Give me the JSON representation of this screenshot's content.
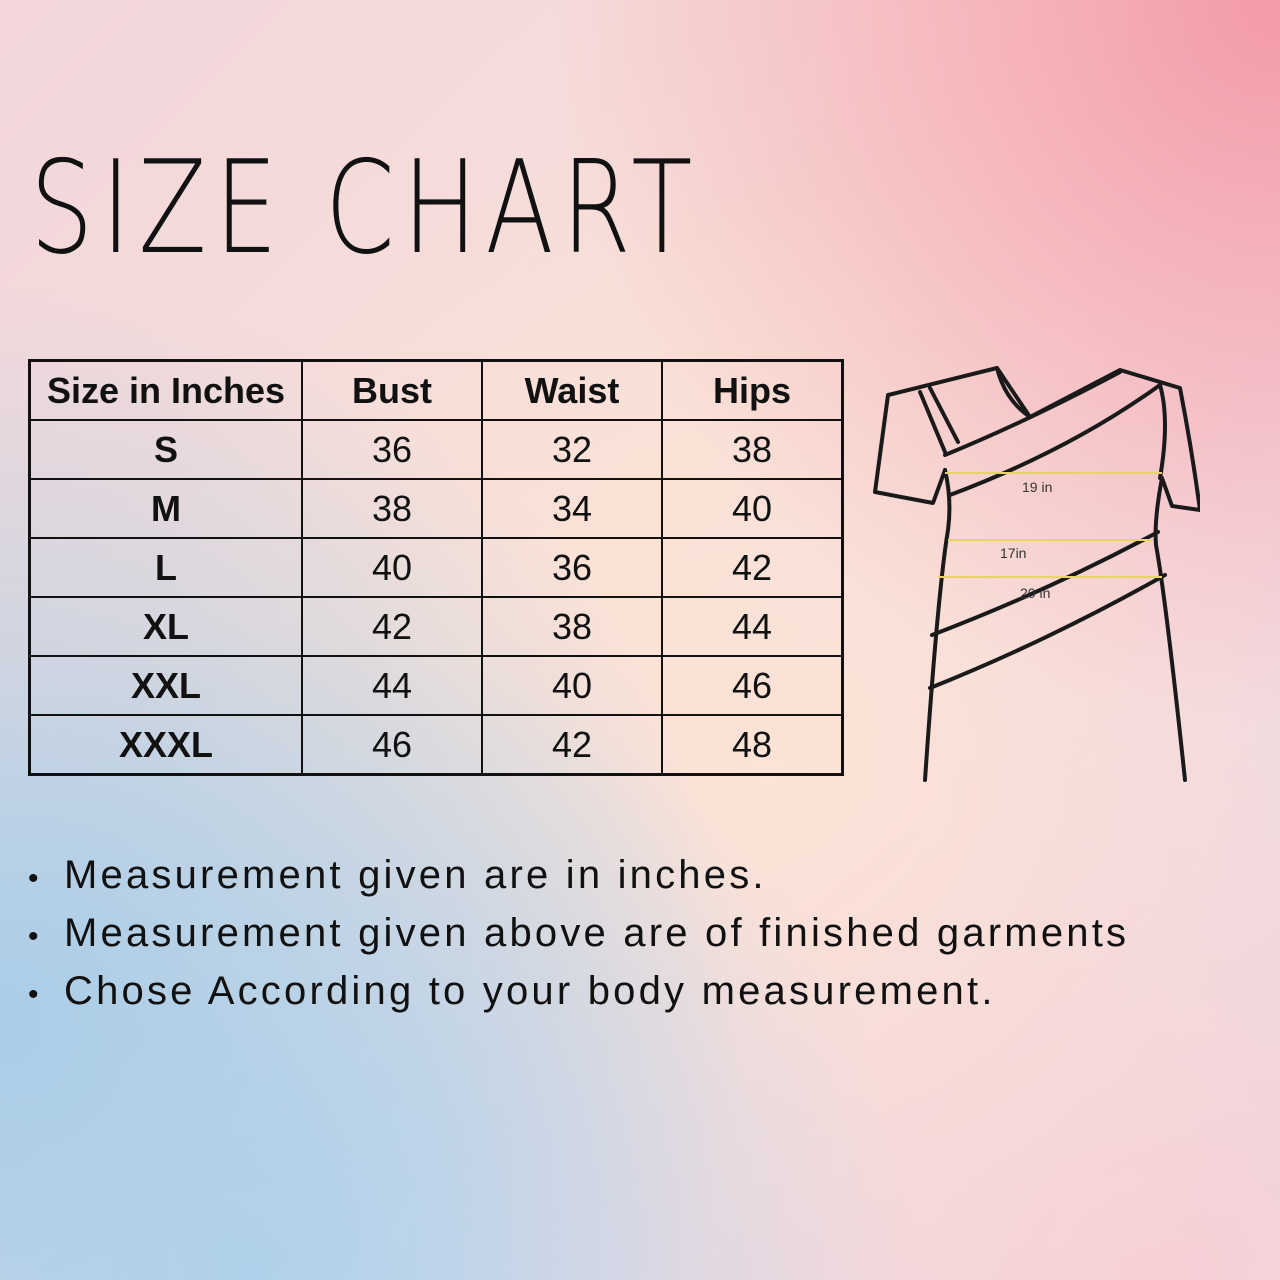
{
  "title": "SIZE CHART",
  "table": {
    "headers": [
      "Size in Inches",
      "Bust",
      "Waist",
      "Hips"
    ],
    "rows": [
      [
        "S",
        "36",
        "32",
        "38"
      ],
      [
        "M",
        "38",
        "34",
        "40"
      ],
      [
        "L",
        "40",
        "36",
        "42"
      ],
      [
        "XL",
        "42",
        "38",
        "44"
      ],
      [
        "XXL",
        "44",
        "40",
        "46"
      ],
      [
        "XXXL",
        "46",
        "42",
        "48"
      ]
    ]
  },
  "diagram": {
    "labels": [
      "19 in",
      "17in",
      "20 in"
    ],
    "line_color": "#e8d36a"
  },
  "notes": [
    "Measurement given are in inches.",
    "Measurement given above are of finished garments",
    "Chose According to your body measurement."
  ],
  "bullet": "•"
}
